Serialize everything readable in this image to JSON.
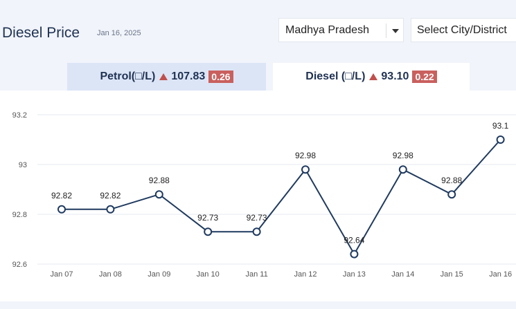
{
  "header": {
    "title": "Diesel Price",
    "date": "Jan 16, 2025",
    "state_select": "Madhya Pradesh",
    "city_select": "Select City/District"
  },
  "tabs": {
    "petrol": {
      "label": "Petrol(□/L)",
      "price": "107.83",
      "change": "0.26"
    },
    "diesel": {
      "label": "Diesel (□/L)",
      "price": "93.10",
      "change": "0.22"
    }
  },
  "colors": {
    "line": "#1f3a5f",
    "up_arrow": "#c0504d",
    "badge": "#c9605e",
    "active_tab": "#ffffff",
    "inactive_tab": "#dce5f6"
  },
  "icons": {
    "state_dropdown": "chevron-down-icon",
    "change_indicator": "triangle-up-icon"
  },
  "chart_data": {
    "type": "line",
    "title": "",
    "xlabel": "",
    "ylabel": "",
    "categories": [
      "Jan 07",
      "Jan 08",
      "Jan 09",
      "Jan 10",
      "Jan 11",
      "Jan 12",
      "Jan 13",
      "Jan 14",
      "Jan 15",
      "Jan 16"
    ],
    "values": [
      92.82,
      92.82,
      92.88,
      92.73,
      92.73,
      92.98,
      92.64,
      92.98,
      92.88,
      93.1
    ],
    "data_labels": [
      "92.82",
      "92.82",
      "92.88",
      "92.73",
      "92.73",
      "92.98",
      "92.64",
      "92.98",
      "92.88",
      "93.1"
    ],
    "yticks": [
      "92.6",
      "92.8",
      "93",
      "93.2"
    ],
    "ylim": [
      92.6,
      93.2
    ],
    "grid": true,
    "legend": "none"
  }
}
